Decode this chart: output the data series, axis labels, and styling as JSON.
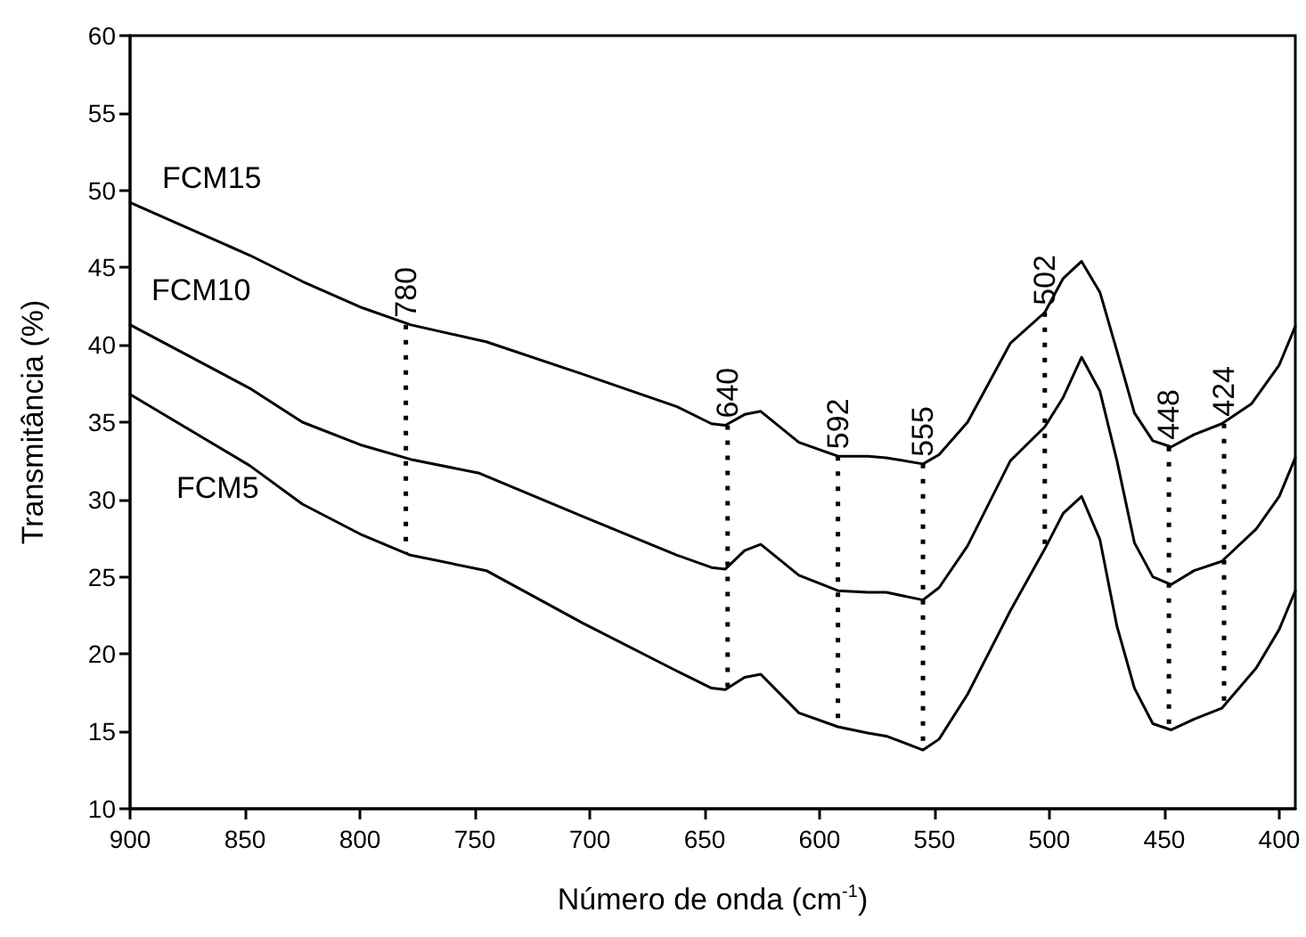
{
  "chart_data": {
    "type": "line",
    "xlabel": "Número de onda (cm$^{-1}$)",
    "ylabel": "Transmitância (%)",
    "xlim": [
      900,
      393
    ],
    "xticks": [
      900,
      850,
      800,
      750,
      700,
      650,
      600,
      550,
      500,
      450,
      400
    ],
    "ylim": [
      10,
      60
    ],
    "yticks": [
      10,
      15,
      20,
      25,
      30,
      35,
      40,
      45,
      50,
      55,
      60
    ],
    "grid": false,
    "legend": false,
    "marker": "none",
    "line_style": "solid",
    "series": [
      {
        "name": "FCM15",
        "color": "#000000",
        "x": [
          900,
          848,
          825,
          799,
          778,
          745,
          703,
          662,
          647,
          641,
          632.6,
          625.6,
          609,
          592,
          579,
          571,
          555,
          548,
          535.6,
          517,
          502,
          494,
          486,
          478,
          470.6,
          463,
          455,
          447,
          437,
          425,
          412,
          400,
          393
        ],
        "values": [
          49.2,
          45.8,
          44.1,
          42.4,
          41.3,
          40.2,
          38.1,
          36.0,
          34.9,
          34.8,
          35.5,
          35.7,
          33.7,
          32.8,
          32.8,
          32.7,
          32.3,
          32.9,
          35.0,
          40.1,
          42.1,
          44.3,
          45.4,
          43.4,
          39.6,
          35.6,
          33.8,
          33.4,
          34.2,
          34.9,
          36.2,
          38.7,
          41.2
        ]
      },
      {
        "name": "FCM10",
        "color": "#000000",
        "x": [
          900,
          848,
          825,
          799,
          778,
          748,
          703,
          662,
          647,
          641,
          632.6,
          625.6,
          609,
          592,
          579,
          571,
          555,
          548,
          535.6,
          517,
          502,
          494,
          486,
          478,
          470.6,
          463,
          455,
          447,
          437,
          425,
          410,
          400,
          393
        ],
        "values": [
          41.3,
          37.2,
          35.0,
          33.5,
          32.6,
          31.7,
          28.9,
          26.4,
          25.6,
          25.5,
          26.7,
          27.1,
          25.1,
          24.1,
          24.0,
          24.0,
          23.5,
          24.3,
          27.0,
          32.5,
          34.7,
          36.6,
          39.2,
          37.0,
          32.5,
          27.2,
          25.0,
          24.5,
          25.4,
          26.0,
          28.1,
          30.2,
          32.7
        ]
      },
      {
        "name": "FCM5",
        "color": "#000000",
        "x": [
          900,
          848,
          825,
          799,
          778,
          745,
          703,
          662,
          647,
          641,
          632.6,
          625.6,
          609,
          592,
          579,
          571,
          555,
          548,
          535.6,
          517,
          502,
          494,
          486,
          478,
          470.6,
          463,
          455,
          447,
          437,
          425,
          410,
          400,
          393
        ],
        "values": [
          36.8,
          32.2,
          29.7,
          27.7,
          26.4,
          25.4,
          22.0,
          18.9,
          17.8,
          17.7,
          18.5,
          18.7,
          16.2,
          15.3,
          14.9,
          14.7,
          13.8,
          14.5,
          17.4,
          22.8,
          26.8,
          29.1,
          30.2,
          27.4,
          21.8,
          17.8,
          15.5,
          15.1,
          15.8,
          16.5,
          19.1,
          21.6,
          24.1
        ]
      }
    ],
    "annotations": [
      {
        "text": "780",
        "x": 780,
        "y": 41.3
      },
      {
        "text": "640",
        "x": 640,
        "y": 34.8
      },
      {
        "text": "592",
        "x": 592,
        "y": 32.8
      },
      {
        "text": "555",
        "x": 555,
        "y": 32.3
      },
      {
        "text": "502",
        "x": 502,
        "y": 42.1
      },
      {
        "text": "448",
        "x": 448,
        "y": 33.4
      },
      {
        "text": "424",
        "x": 424,
        "y": 34.9
      }
    ]
  }
}
